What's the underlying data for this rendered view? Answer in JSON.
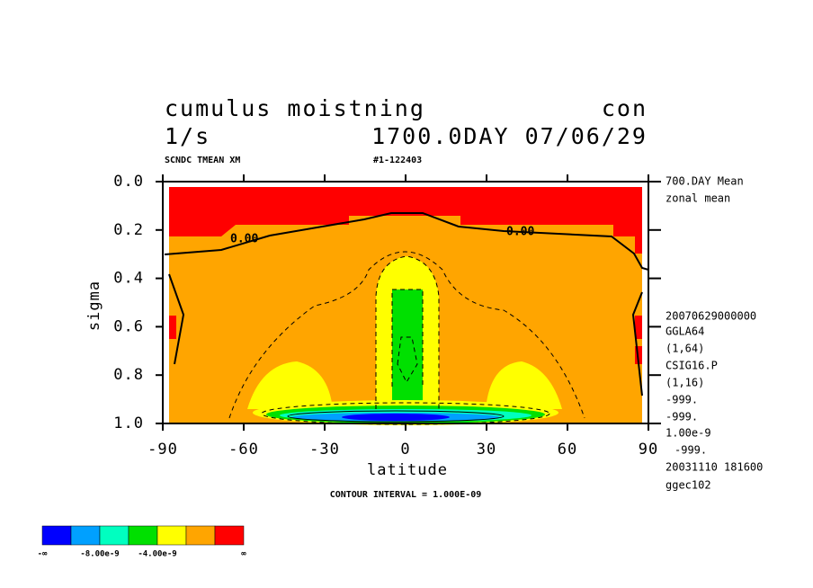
{
  "chart_data": {
    "type": "contour",
    "title": "cumulus moistning",
    "title_right": "con",
    "subtitle": "1/s",
    "subtitle_right": "1700.0DAY 07/06/29",
    "header_left": "SCNDC TMEAN XM",
    "header_mid": "#1-122403",
    "xlabel": "latitude",
    "ylabel": "sigma",
    "xlim": [
      -90,
      90
    ],
    "ylim": [
      1,
      0
    ],
    "xticks": [
      -90,
      -60,
      -30,
      0,
      30,
      60,
      90
    ],
    "yticks": [
      {
        "value": 0,
        "label": "0.0"
      },
      0.2,
      0.4,
      0.6,
      0.8,
      {
        "value": 1,
        "label": "1.0"
      }
    ],
    "contour_labels": [
      "0.00",
      "0.00"
    ],
    "contour_interval": "CONTOUR INTERVAL = 1.000E-09",
    "side_labels": [
      "700.DAY Mean",
      "zonal mean",
      "20070629000000",
      "GGLA64",
      "(1,64)",
      "CSIG16.P",
      "(1,16)",
      "-999.",
      "-999.",
      "1.00e-9",
      "-999.",
      "20031110 181600",
      "ggec102"
    ],
    "colorbar": {
      "colors": [
        "#0000ff",
        "#00a0ff",
        "#00ffc0",
        "#00e000",
        "#ffff00",
        "#ffa500",
        "#ff0000"
      ],
      "labels": [
        "-∞",
        null,
        "-8.00e-9",
        null,
        "-4.00e-9",
        null,
        null,
        "∞"
      ]
    }
  }
}
